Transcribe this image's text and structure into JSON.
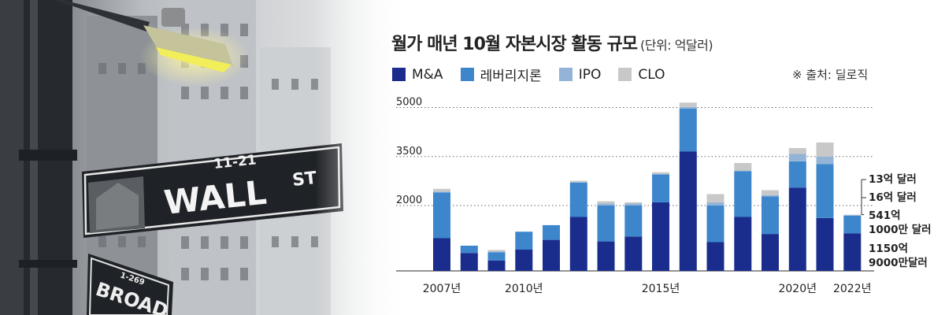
{
  "title": "월가 매년 10월 자본시장 활동 규모",
  "unit": "(단위: 억달러)",
  "source": "※ 출처: 딜로직",
  "photo": {
    "sign_number": "11-21",
    "sign_main": "WALL",
    "sign_suffix": "ST",
    "sign_lower": "BROAD",
    "sign_lower_number": "1-269"
  },
  "colors": {
    "ma": "#1a2d8c",
    "leveraged": "#3d86cc",
    "ipo": "#93b4d6",
    "clo": "#c8c8c8",
    "grid": "#666666",
    "text": "#222222"
  },
  "chart_data": {
    "type": "bar",
    "stacked": true,
    "x": [
      "2007",
      "2008",
      "2009",
      "2010",
      "2011",
      "2012",
      "2013",
      "2014",
      "2015",
      "2016",
      "2017",
      "2018",
      "2019",
      "2020",
      "2021",
      "2022"
    ],
    "x_tick_labels": [
      "2007년",
      "2010년",
      "2015년",
      "2020년",
      "2022년"
    ],
    "x_tick_years": [
      "2007",
      "2010",
      "2015",
      "2020",
      "2022"
    ],
    "y_ticks": [
      2000,
      3500,
      5000
    ],
    "ylim": [
      0,
      5200
    ],
    "grid": true,
    "legend_position": "top-left",
    "series": [
      {
        "name": "M&A",
        "key": "ma",
        "values": [
          1000,
          550,
          320,
          650,
          950,
          1650,
          900,
          1050,
          2100,
          3650,
          880,
          1650,
          1130,
          2550,
          1620,
          1151
        ]
      },
      {
        "name": "레버리지론",
        "key": "leveraged",
        "values": [
          1400,
          220,
          250,
          550,
          450,
          1050,
          1100,
          950,
          850,
          1320,
          1120,
          1400,
          1150,
          800,
          1650,
          541
        ]
      },
      {
        "name": "IPO",
        "key": "ipo",
        "values": [
          30,
          0,
          20,
          0,
          0,
          20,
          60,
          60,
          20,
          50,
          100,
          20,
          40,
          230,
          230,
          16
        ]
      },
      {
        "name": "CLO",
        "key": "clo",
        "values": [
          80,
          0,
          50,
          0,
          0,
          40,
          70,
          40,
          50,
          130,
          250,
          230,
          150,
          180,
          430,
          13
        ]
      }
    ],
    "annotations": [
      {
        "text": "13억 달러",
        "series": "clo",
        "year": "2022"
      },
      {
        "text": "16억 달러",
        "series": "ipo",
        "year": "2022"
      },
      {
        "text": "541억 1000만 달러",
        "series": "leveraged",
        "year": "2022"
      },
      {
        "text": "1150억 9000만달러",
        "series": "ma",
        "year": "2022"
      }
    ]
  }
}
